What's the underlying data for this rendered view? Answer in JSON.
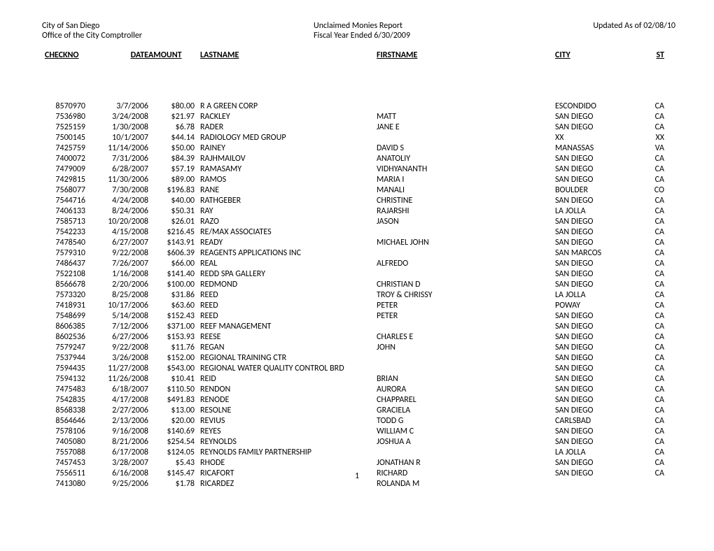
{
  "header": {
    "org": "City of San Diego",
    "title": "Unclaimed Monies Report",
    "updated": "Updated As of 02/08/10",
    "office": "Office of the City Comptroller",
    "fiscal": "Fiscal Year Ended 6/30/2009"
  },
  "columns": {
    "checkno": "CHECKNO",
    "date": "DATE",
    "amount": "AMOUNT",
    "lastname": "LASTNAME",
    "firstname": "FIRSTNAME",
    "city": "CITY",
    "st": "ST"
  },
  "rows": [
    {
      "checkno": "8570970",
      "date": "3/7/2006",
      "amount": "$80.00",
      "last": "R A GREEN CORP",
      "first": "",
      "city": "ESCONDIDO",
      "st": "CA"
    },
    {
      "checkno": "7536980",
      "date": "3/24/2008",
      "amount": "$21.97",
      "last": "RACKLEY",
      "first": "MATT",
      "city": "SAN DIEGO",
      "st": "CA"
    },
    {
      "checkno": "7525159",
      "date": "1/30/2008",
      "amount": "$6.78",
      "last": "RADER",
      "first": "JANE E",
      "city": "SAN DIEGO",
      "st": "CA"
    },
    {
      "checkno": "7500145",
      "date": "10/1/2007",
      "amount": "$44.14",
      "last": "RADIOLOGY MED GROUP",
      "first": "",
      "city": "XX",
      "st": "XX"
    },
    {
      "checkno": "7425759",
      "date": "11/14/2006",
      "amount": "$50.00",
      "last": "RAINEY",
      "first": "DAVID S",
      "city": "MANASSAS",
      "st": "VA"
    },
    {
      "checkno": "7400072",
      "date": "7/31/2006",
      "amount": "$84.39",
      "last": "RAJHMAILOV",
      "first": "ANATOLIY",
      "city": "SAN DIEGO",
      "st": "CA"
    },
    {
      "checkno": "7479009",
      "date": "6/28/2007",
      "amount": "$57.19",
      "last": "RAMASAMY",
      "first": "VIDHYANANTH",
      "city": "SAN DIEGO",
      "st": "CA"
    },
    {
      "checkno": "7429815",
      "date": "11/30/2006",
      "amount": "$89.00",
      "last": "RAMOS",
      "first": "MARIA I",
      "city": "SAN DIEGO",
      "st": "CA"
    },
    {
      "checkno": "7568077",
      "date": "7/30/2008",
      "amount": "$196.83",
      "last": "RANE",
      "first": "MANALI",
      "city": "BOULDER",
      "st": "CO"
    },
    {
      "checkno": "7544716",
      "date": "4/24/2008",
      "amount": "$40.00",
      "last": "RATHGEBER",
      "first": "CHRISTINE",
      "city": "SAN DIEGO",
      "st": "CA"
    },
    {
      "checkno": "7406133",
      "date": "8/24/2006",
      "amount": "$50.31",
      "last": "RAY",
      "first": "RAJARSHI",
      "city": "LA JOLLA",
      "st": "CA"
    },
    {
      "checkno": "7585713",
      "date": "10/20/2008",
      "amount": "$26.01",
      "last": "RAZO",
      "first": "JASON",
      "city": "SAN DIEGO",
      "st": "CA"
    },
    {
      "checkno": "7542233",
      "date": "4/15/2008",
      "amount": "$216.45",
      "last": "RE/MAX ASSOCIATES",
      "first": "",
      "city": "SAN DIEGO",
      "st": "CA"
    },
    {
      "checkno": "7478540",
      "date": "6/27/2007",
      "amount": "$143.91",
      "last": "READY",
      "first": "MICHAEL JOHN",
      "city": "SAN DIEGO",
      "st": "CA"
    },
    {
      "checkno": "7579310",
      "date": "9/22/2008",
      "amount": "$606.39",
      "last": "REAGENTS APPLICATIONS INC",
      "first": "",
      "city": "SAN MARCOS",
      "st": "CA"
    },
    {
      "checkno": "7486437",
      "date": "7/26/2007",
      "amount": "$66.00",
      "last": "REAL",
      "first": "ALFREDO",
      "city": "SAN DIEGO",
      "st": "CA"
    },
    {
      "checkno": "7522108",
      "date": "1/16/2008",
      "amount": "$141.40",
      "last": "REDD SPA GALLERY",
      "first": "",
      "city": "SAN DIEGO",
      "st": "CA"
    },
    {
      "checkno": "8566678",
      "date": "2/20/2006",
      "amount": "$100.00",
      "last": "REDMOND",
      "first": "CHRISTIAN D",
      "city": "SAN DIEGO",
      "st": "CA"
    },
    {
      "checkno": "7573320",
      "date": "8/25/2008",
      "amount": "$31.86",
      "last": "REED",
      "first": "TROY & CHRISSY",
      "city": "LA JOLLA",
      "st": "CA"
    },
    {
      "checkno": "7418931",
      "date": "10/17/2006",
      "amount": "$63.60",
      "last": "REED",
      "first": "PETER",
      "city": "POWAY",
      "st": "CA"
    },
    {
      "checkno": "7548699",
      "date": "5/14/2008",
      "amount": "$152.43",
      "last": "REED",
      "first": "PETER",
      "city": "SAN DIEGO",
      "st": "CA"
    },
    {
      "checkno": "8606385",
      "date": "7/12/2006",
      "amount": "$371.00",
      "last": "REEF MANAGEMENT",
      "first": "",
      "city": "SAN DIEGO",
      "st": "CA"
    },
    {
      "checkno": "8602536",
      "date": "6/27/2006",
      "amount": "$153.93",
      "last": "REESE",
      "first": "CHARLES E",
      "city": "SAN DIEGO",
      "st": "CA"
    },
    {
      "checkno": "7579247",
      "date": "9/22/2008",
      "amount": "$11.76",
      "last": "REGAN",
      "first": "JOHN",
      "city": "SAN DIEGO",
      "st": "CA"
    },
    {
      "checkno": "7537944",
      "date": "3/26/2008",
      "amount": "$152.00",
      "last": "REGIONAL TRAINING CTR",
      "first": "",
      "city": "SAN DIEGO",
      "st": "CA"
    },
    {
      "checkno": "7594435",
      "date": "11/27/2008",
      "amount": "$543.00",
      "last": "REGIONAL WATER QUALITY CONTROL BRD",
      "first": "",
      "city": "SAN DIEGO",
      "st": "CA"
    },
    {
      "checkno": "7594132",
      "date": "11/26/2008",
      "amount": "$10.41",
      "last": "REID",
      "first": "BRIAN",
      "city": "SAN DIEGO",
      "st": "CA"
    },
    {
      "checkno": "7475483",
      "date": "6/18/2007",
      "amount": "$110.50",
      "last": "RENDON",
      "first": "AURORA",
      "city": "SAN DIEGO",
      "st": "CA"
    },
    {
      "checkno": "7542835",
      "date": "4/17/2008",
      "amount": "$491.83",
      "last": "RENODE",
      "first": "CHAPPAREL",
      "city": "SAN DIEGO",
      "st": "CA"
    },
    {
      "checkno": "8568338",
      "date": "2/27/2006",
      "amount": "$13.00",
      "last": "RESOLNE",
      "first": "GRACIELA",
      "city": "SAN DIEGO",
      "st": "CA"
    },
    {
      "checkno": "8564646",
      "date": "2/13/2006",
      "amount": "$20.00",
      "last": "REVIUS",
      "first": "TODD G",
      "city": "CARLSBAD",
      "st": "CA"
    },
    {
      "checkno": "7578106",
      "date": "9/16/2008",
      "amount": "$140.69",
      "last": "REYES",
      "first": "WILLIAM C",
      "city": "SAN DIEGO",
      "st": "CA"
    },
    {
      "checkno": "7405080",
      "date": "8/21/2006",
      "amount": "$254.54",
      "last": "REYNOLDS",
      "first": "JOSHUA A",
      "city": "SAN DIEGO",
      "st": "CA"
    },
    {
      "checkno": "7557088",
      "date": "6/17/2008",
      "amount": "$124.05",
      "last": "REYNOLDS FAMILY PARTNERSHIP",
      "first": "",
      "city": "LA JOLLA",
      "st": "CA"
    },
    {
      "checkno": "7457453",
      "date": "3/28/2007",
      "amount": "$5.43",
      "last": "RHODE",
      "first": "JONATHAN R",
      "city": "SAN DIEGO",
      "st": "CA"
    },
    {
      "checkno": "7556511",
      "date": "6/16/2008",
      "amount": "$145.47",
      "last": "RICAFORT",
      "first": "RICHARD",
      "city": "SAN DIEGO",
      "st": "CA"
    },
    {
      "checkno": "7413080",
      "date": "9/25/2006",
      "amount": "$1.78",
      "last": "RICARDEZ",
      "first": "ROLANDA M",
      "city": "",
      "st": ""
    }
  ],
  "page_number": "1"
}
